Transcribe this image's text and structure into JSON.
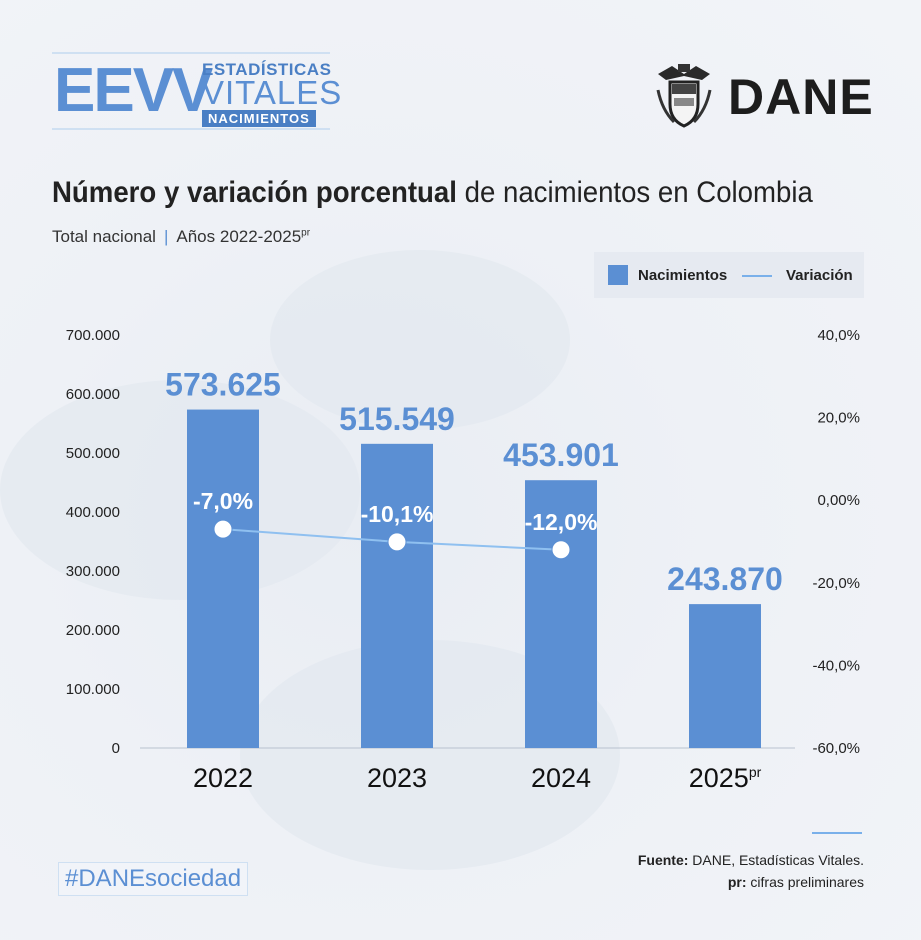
{
  "header": {
    "eevv_big": "EEVV",
    "eevv_line1": "ESTADÍSTICAS",
    "eevv_line2": "VITALES",
    "eevv_line3": "NACIMIENTOS",
    "dane": "DANE"
  },
  "title_bold": "Número y variación porcentual",
  "title_rest": " de nacimientos en Colombia",
  "subtitle_left": "Total nacional",
  "subtitle_sep": "|",
  "subtitle_right": "Años 2022-2025",
  "subtitle_sup": "pr",
  "legend": {
    "bar": "Nacimientos",
    "line": "Variación"
  },
  "colors": {
    "bar": "#5b8fd3",
    "line": "#8fc0f0",
    "accent": "#4a7fc4"
  },
  "chart_data": {
    "type": "bar",
    "categories": [
      "2022",
      "2023",
      "2024",
      "2025"
    ],
    "category_sup": [
      "",
      "",
      "",
      "pr"
    ],
    "series": [
      {
        "name": "Nacimientos",
        "values": [
          573625,
          515549,
          453901,
          243870
        ],
        "labels": [
          "573.625",
          "515.549",
          "453.901",
          "243.870"
        ]
      },
      {
        "name": "Variación",
        "values": [
          -7.0,
          -10.1,
          -12.0,
          null
        ],
        "labels": [
          "-7,0%",
          "-10,1%",
          "-12,0%",
          ""
        ]
      }
    ],
    "y_left": {
      "ylim": [
        0,
        700000
      ],
      "ticks": [
        0,
        100000,
        200000,
        300000,
        400000,
        500000,
        600000,
        700000
      ],
      "tick_labels": [
        "0",
        "100.000",
        "200.000",
        "300.000",
        "400.000",
        "500.000",
        "600.000",
        "700.000"
      ]
    },
    "y_right": {
      "ylim": [
        -60,
        40
      ],
      "ticks": [
        -60,
        -40,
        -20,
        0,
        20,
        40
      ],
      "tick_labels": [
        "-60,0%",
        "-40,0%",
        "-20,0%",
        "0,00%",
        "20,0%",
        "40,0%"
      ]
    },
    "title": "Número y variación porcentual de nacimientos en Colombia"
  },
  "footer": {
    "source_bold": "Fuente:",
    "source_rest": " DANE, Estadísticas Vitales.",
    "note_bold": "pr:",
    "note_rest": " cifras preliminares",
    "hashtag_a": "#DANE",
    "hashtag_b": "sociedad"
  }
}
